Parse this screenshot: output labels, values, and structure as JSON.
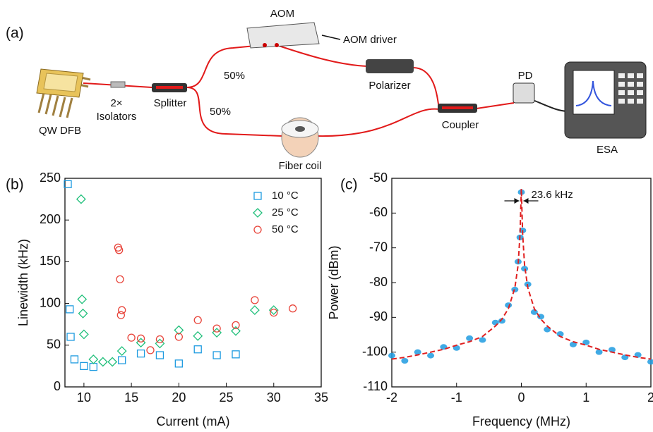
{
  "diagram": {
    "panel_label": "(a)",
    "labels": [
      "AOM",
      "AOM driver",
      "QW DFB",
      "2×",
      "Isolators",
      "Splitter",
      "50%",
      "50%",
      "Polarizer",
      "Coupler",
      "PD",
      "ESA",
      "Fiber coil"
    ]
  },
  "chart_data": [
    {
      "type": "scatter",
      "panel_label": "(b)",
      "x_label": "Current (mA)",
      "y_label": "Linewidth (kHz)",
      "xlim": [
        8,
        35
      ],
      "xticks": [
        10,
        15,
        20,
        25,
        30,
        35
      ],
      "ylim": [
        0,
        250
      ],
      "yticks": [
        0,
        50,
        100,
        150,
        200,
        250
      ],
      "legend": "upper right",
      "series": [
        {
          "name": "10 °C",
          "color": "#1e9be0",
          "marker": "square",
          "x": [
            8.3,
            8.5,
            8.6,
            9,
            10,
            11,
            14,
            16,
            18,
            20,
            22,
            24,
            26
          ],
          "values": [
            243,
            93,
            60,
            33,
            25,
            24,
            32,
            40,
            38,
            28,
            45,
            38,
            39
          ]
        },
        {
          "name": "25 °C",
          "color": "#1fbf7a",
          "marker": "diamond",
          "x": [
            9.7,
            9.8,
            9.9,
            10,
            11,
            12,
            13,
            14,
            16,
            18,
            20,
            22,
            24,
            26,
            28,
            30
          ],
          "values": [
            225,
            105,
            88,
            63,
            33,
            30,
            30,
            43,
            53,
            52,
            68,
            61,
            65,
            67,
            92,
            92
          ]
        },
        {
          "name": "50 °C",
          "color": "#e8443a",
          "marker": "circle",
          "x": [
            13.6,
            13.7,
            13.8,
            14,
            13.9,
            15,
            16,
            17,
            18,
            20,
            22,
            24,
            26,
            28,
            30,
            32
          ],
          "values": [
            167,
            164,
            129,
            92,
            86,
            59,
            58,
            44,
            57,
            60,
            80,
            70,
            74,
            104,
            89,
            94
          ]
        }
      ]
    },
    {
      "type": "line",
      "panel_label": "(c)",
      "x_label": "Frequency (MHz)",
      "y_label": "Power (dBm)",
      "annotation": "23.6 kHz",
      "xlim": [
        -2,
        2
      ],
      "xticks": [
        -2,
        -1,
        0,
        1,
        2
      ],
      "ylim": [
        -110,
        -50
      ],
      "yticks": [
        -110,
        -100,
        -90,
        -80,
        -70,
        -60,
        -50
      ],
      "x": [
        -2,
        -1.8,
        -1.6,
        -1.4,
        -1.2,
        -1,
        -0.8,
        -0.6,
        -0.4,
        -0.3,
        -0.2,
        -0.1,
        -0.05,
        -0.02,
        0,
        0.02,
        0.05,
        0.1,
        0.2,
        0.3,
        0.4,
        0.6,
        0.8,
        1,
        1.2,
        1.4,
        1.6,
        1.8,
        2
      ],
      "series": [
        {
          "color": "#1e9be0",
          "style": "dots",
          "values": [
            -101,
            -102.5,
            -100,
            -101,
            -98.5,
            -98.8,
            -96,
            -96.5,
            -91.5,
            -91,
            -86.5,
            -82,
            -74,
            -67,
            -54,
            -65,
            -76,
            -80.5,
            -88.5,
            -89.8,
            -93.5,
            -94.8,
            -97.8,
            -97.2,
            -100,
            -99.3,
            -101.5,
            -100.8,
            -102.8
          ]
        },
        {
          "color": "#e02020",
          "style": "dashed",
          "values": [
            -102,
            -101.5,
            -100.8,
            -100,
            -99.2,
            -98,
            -97,
            -95.5,
            -92.5,
            -90.5,
            -87.5,
            -81.5,
            -75,
            -66,
            -53,
            -66,
            -75,
            -81.5,
            -87.5,
            -90.5,
            -92.5,
            -95.5,
            -97,
            -98,
            -99.2,
            -100,
            -100.8,
            -101.5,
            -102
          ]
        }
      ]
    }
  ]
}
